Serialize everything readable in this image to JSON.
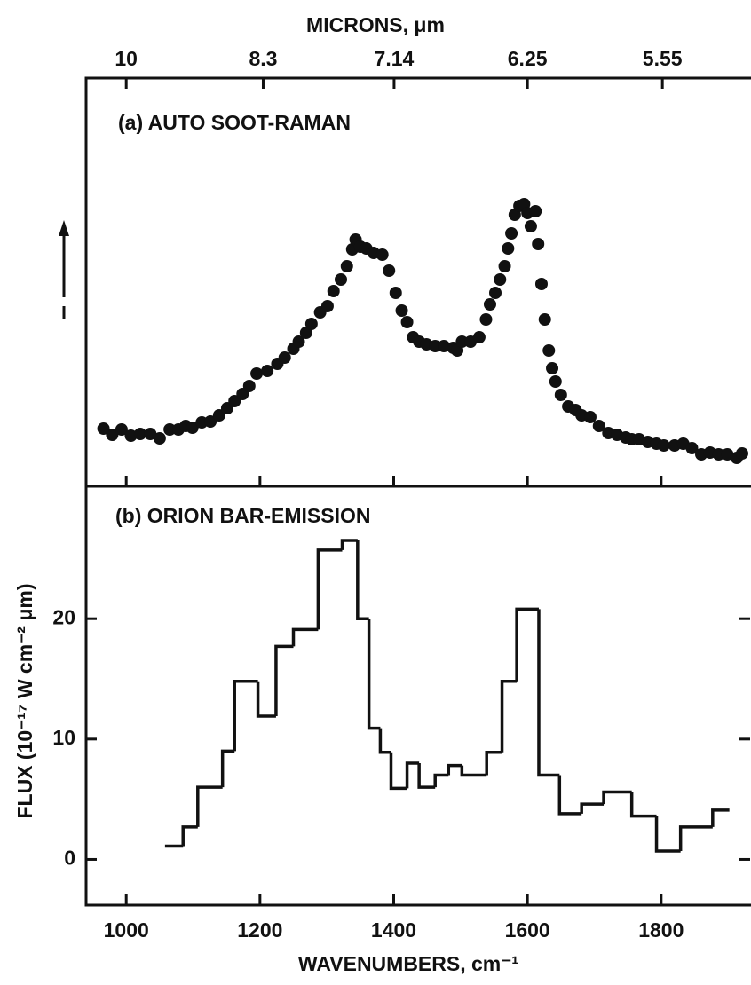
{
  "chart_data": [
    {
      "type": "scatter",
      "title": "(a) AUTO SOOT-RAMAN",
      "x2label": "MICRONS, μm",
      "x2ticks": [
        10,
        8.3,
        7.14,
        6.25,
        5.55
      ],
      "xlim": [
        940,
        1933
      ],
      "ylim": [
        0,
        460
      ],
      "color": "#111111",
      "x": [
        966,
        979,
        993,
        1007,
        1021,
        1036,
        1050,
        1065,
        1078,
        1089,
        1099,
        1113,
        1126,
        1139,
        1151,
        1162,
        1174,
        1184,
        1195,
        1211,
        1226,
        1237,
        1250,
        1258,
        1269,
        1277,
        1290,
        1301,
        1310,
        1321,
        1330,
        1338,
        1343,
        1350,
        1359,
        1370,
        1383,
        1393,
        1403,
        1412,
        1420,
        1429,
        1438,
        1449,
        1462,
        1475,
        1489,
        1495,
        1502,
        1515,
        1528,
        1538,
        1544,
        1552,
        1559,
        1566,
        1571,
        1576,
        1581,
        1588,
        1595,
        1600,
        1605,
        1612,
        1616,
        1621,
        1626,
        1632,
        1637,
        1642,
        1650,
        1661,
        1672,
        1681,
        1694,
        1707,
        1721,
        1734,
        1747,
        1756,
        1767,
        1780,
        1793,
        1804,
        1820,
        1833,
        1846,
        1860,
        1873,
        1886,
        1899,
        1913,
        1921
      ],
      "values": [
        65,
        58,
        64,
        57,
        59,
        59,
        54,
        64,
        64,
        68,
        66,
        72,
        73,
        80,
        88,
        96,
        104,
        113,
        127,
        130,
        138,
        145,
        155,
        163,
        173,
        183,
        196,
        203,
        220,
        233,
        248,
        267,
        278,
        270,
        268,
        263,
        261,
        243,
        218,
        198,
        185,
        168,
        163,
        160,
        158,
        158,
        156,
        153,
        163,
        163,
        168,
        188,
        205,
        218,
        233,
        248,
        268,
        285,
        306,
        316,
        318,
        308,
        293,
        310,
        273,
        228,
        188,
        153,
        133,
        118,
        103,
        90,
        86,
        80,
        78,
        68,
        60,
        58,
        55,
        53,
        53,
        50,
        48,
        46,
        46,
        48,
        43,
        36,
        38,
        36,
        36,
        32,
        37
      ]
    },
    {
      "type": "histogram",
      "title": "(b) ORION BAR-EMISSION",
      "xlabel": "WAVENUMBERS, cm⁻¹",
      "ylabel": "FLUX (10⁻¹⁷ W cm⁻² μm)",
      "xlim": [
        940,
        1933
      ],
      "ylim": [
        -3.8,
        31
      ],
      "xticks": [
        1000,
        1200,
        1400,
        1600,
        1800
      ],
      "yticks": [
        0,
        10,
        20
      ],
      "color": "#111111",
      "bins": [
        1058,
        1085,
        1107,
        1144,
        1162,
        1197,
        1224,
        1250,
        1287,
        1323,
        1346,
        1363,
        1380,
        1396,
        1420,
        1438,
        1462,
        1482,
        1502,
        1539,
        1562,
        1584,
        1617,
        1648,
        1681,
        1714,
        1756,
        1793,
        1829,
        1877,
        1902
      ],
      "values": [
        1.1,
        2.7,
        6,
        9,
        14.8,
        11.9,
        17.7,
        19.1,
        25.7,
        26.5,
        20,
        10.9,
        8.9,
        5.9,
        8,
        6,
        7,
        7.8,
        7,
        8.9,
        14.8,
        20.8,
        7,
        3.8,
        4.6,
        5.6,
        3.6,
        0.7,
        2.7,
        4.1
      ]
    }
  ]
}
